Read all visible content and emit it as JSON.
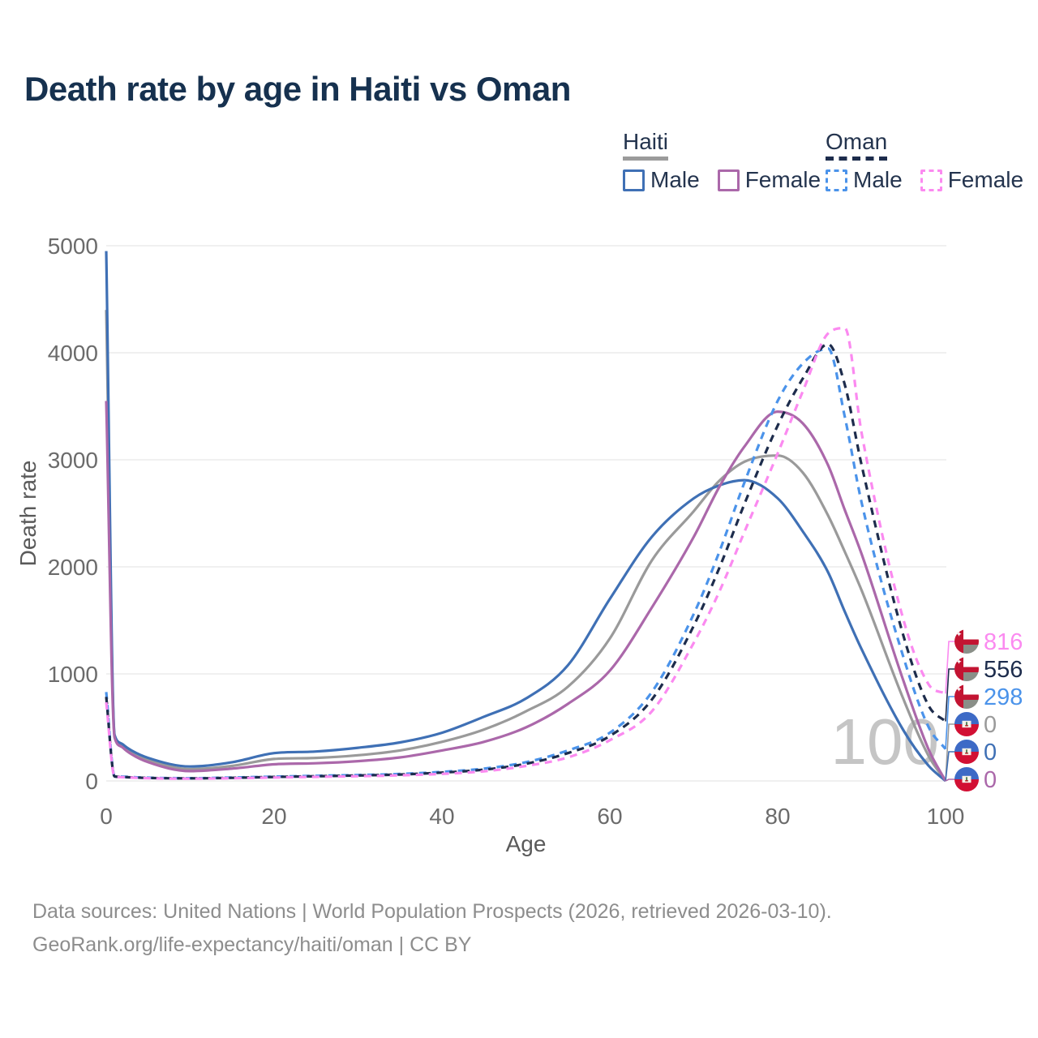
{
  "title": "Death rate by age in Haiti vs Oman",
  "watermark": "100",
  "legend": {
    "groups": [
      {
        "label": "Haiti",
        "line_style": "solid",
        "underline_color": "#9b9b9b",
        "items": [
          {
            "label": "Male",
            "color": "#3f70b5",
            "dash": "solid"
          },
          {
            "label": "Female",
            "color": "#ab68aa",
            "dash": "solid"
          }
        ]
      },
      {
        "label": "Oman",
        "line_style": "dashed",
        "underline_color": "#1d2c4c",
        "items": [
          {
            "label": "Male",
            "color": "#4b93ea",
            "dash": "dashed"
          },
          {
            "label": "Female",
            "color": "#fb8af0",
            "dash": "dashed"
          }
        ]
      }
    ]
  },
  "chart_data": {
    "type": "line",
    "title": "Death rate by age in Haiti vs Oman",
    "xlabel": "Age",
    "ylabel": "Death rate",
    "xlim": [
      0,
      100
    ],
    "ylim": [
      0,
      5000
    ],
    "x_ticks": [
      0,
      20,
      40,
      60,
      80,
      100
    ],
    "y_ticks": [
      0,
      1000,
      2000,
      3000,
      4000,
      5000
    ],
    "grid": "horizontal",
    "legend_position": "top-right",
    "ages": [
      0,
      1,
      2,
      3,
      5,
      10,
      15,
      20,
      25,
      30,
      35,
      40,
      45,
      50,
      55,
      60,
      65,
      70,
      73,
      76,
      80,
      83,
      86,
      88,
      90,
      95,
      98,
      100
    ],
    "series": [
      {
        "name": "Haiti All",
        "country": "Haiti",
        "sex": "all",
        "color": "#9a9a9a",
        "dash": "solid",
        "flag": "haiti",
        "end_label": "0",
        "values": [
          4400,
          420,
          325,
          268,
          195,
          110,
          140,
          205,
          215,
          240,
          285,
          365,
          480,
          650,
          880,
          1330,
          2060,
          2520,
          2800,
          2980,
          3040,
          2880,
          2480,
          2140,
          1780,
          760,
          230,
          0
        ]
      },
      {
        "name": "Haiti Male",
        "country": "Haiti",
        "sex": "male",
        "color": "#3f70b5",
        "dash": "solid",
        "flag": "haiti",
        "end_label": "0",
        "values": [
          4950,
          430,
          340,
          285,
          215,
          135,
          175,
          260,
          275,
          310,
          360,
          450,
          600,
          770,
          1080,
          1700,
          2280,
          2640,
          2760,
          2810,
          2640,
          2330,
          1950,
          1580,
          1230,
          470,
          140,
          0
        ]
      },
      {
        "name": "Haiti Female",
        "country": "Haiti",
        "sex": "female",
        "color": "#ab68aa",
        "dash": "solid",
        "flag": "haiti",
        "end_label": "0",
        "values": [
          3550,
          405,
          310,
          250,
          175,
          92,
          115,
          155,
          165,
          185,
          220,
          285,
          365,
          500,
          720,
          1030,
          1620,
          2280,
          2740,
          3120,
          3450,
          3340,
          2950,
          2530,
          2120,
          930,
          290,
          0
        ]
      },
      {
        "name": "Oman Male",
        "country": "Oman",
        "sex": "male",
        "color": "#4b93ea",
        "dash": "dashed",
        "flag": "oman",
        "end_label": "298",
        "values": [
          830,
          45,
          40,
          36,
          30,
          26,
          32,
          40,
          48,
          55,
          65,
          85,
          115,
          175,
          285,
          450,
          830,
          1560,
          2130,
          2780,
          3550,
          3900,
          4040,
          3400,
          2600,
          1150,
          500,
          298
        ]
      },
      {
        "name": "Oman All",
        "country": "Oman",
        "sex": "all",
        "color": "#1d2c4c",
        "dash": "dashed",
        "flag": "oman",
        "end_label": "556",
        "values": [
          785,
          42,
          37,
          33,
          28,
          24,
          29,
          37,
          44,
          51,
          60,
          78,
          105,
          160,
          260,
          420,
          760,
          1450,
          1980,
          2580,
          3320,
          3760,
          4080,
          3700,
          2950,
          1350,
          700,
          556
        ]
      },
      {
        "name": "Oman Female",
        "country": "Oman",
        "sex": "female",
        "color": "#fb8af0",
        "dash": "dashed",
        "flag": "oman",
        "end_label": "816",
        "values": [
          735,
          40,
          35,
          31,
          25,
          21,
          25,
          32,
          38,
          44,
          52,
          66,
          90,
          140,
          220,
          380,
          650,
          1290,
          1760,
          2320,
          3060,
          3640,
          4180,
          4230,
          3250,
          1500,
          900,
          816
        ]
      }
    ]
  },
  "colors": {
    "grid": "#e8e8e8",
    "watermark": "#c5c5c5",
    "title": "#16314f",
    "axis_text": "#6b6b6b",
    "haiti_flag_blue": "#3d6ac6",
    "haiti_flag_red": "#d21034",
    "oman_flag_red": "#c31432",
    "oman_flag_green": "#8a8f88"
  },
  "footer": {
    "line1": "Data sources: United Nations | World Population Prospects (2026, retrieved 2026-03-10).",
    "line2": "GeoRank.org/life-expectancy/haiti/oman | CC BY"
  }
}
